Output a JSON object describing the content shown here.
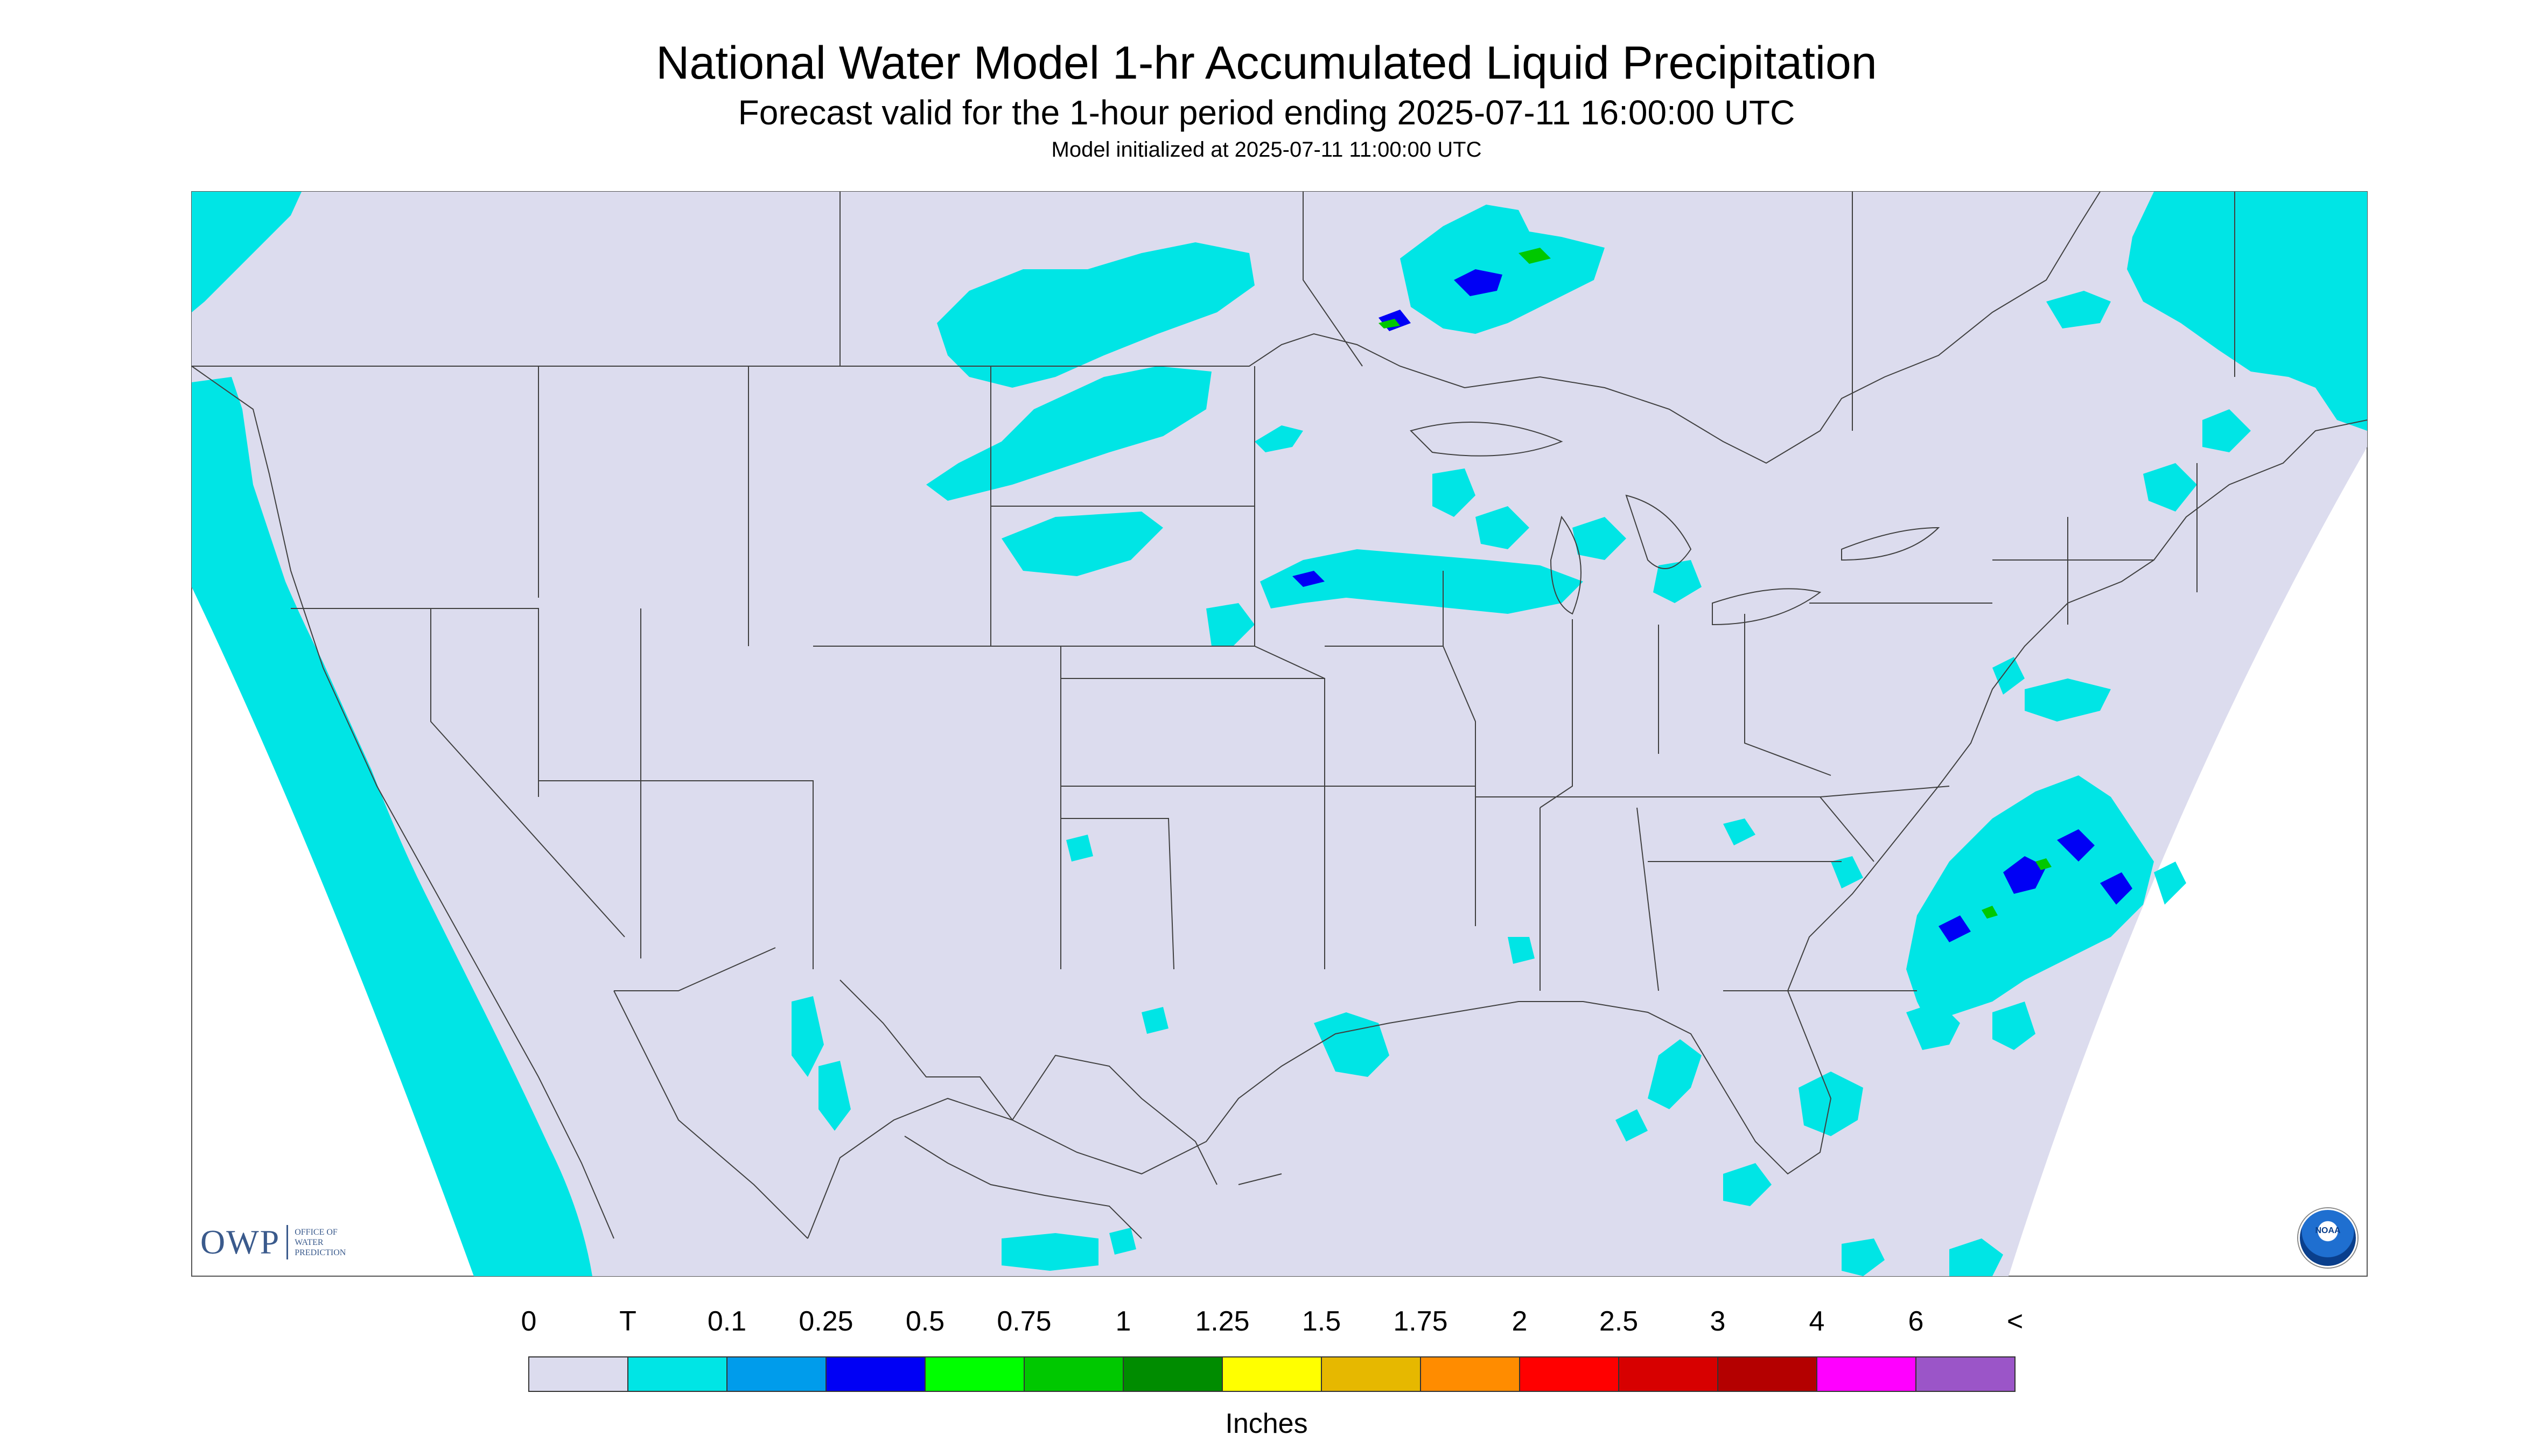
{
  "title": "National Water Model 1-hr Accumulated Liquid Precipitation",
  "subtitle": "Forecast valid for the 1-hour period ending 2025-07-11 16:00:00 UTC",
  "init_line": "Model initialized at 2025-07-11 11:00:00 UTC",
  "legend": {
    "labels": [
      "0",
      "T",
      "0.1",
      "0.25",
      "0.5",
      "0.75",
      "1",
      "1.25",
      "1.5",
      "1.75",
      "2",
      "2.5",
      "3",
      "4",
      "6",
      "<"
    ],
    "colors": [
      "#dcdcee",
      "#00e5e5",
      "#009ceb",
      "#0000f5",
      "#00ff00",
      "#00c800",
      "#008c00",
      "#ffff00",
      "#e6b800",
      "#ff8c00",
      "#ff0000",
      "#d70000",
      "#b40000",
      "#ff00ff",
      "#9b55c8"
    ],
    "units": "Inches"
  },
  "colors": {
    "domain_fill": "#dcdcee",
    "trace": "#00e5e5",
    "light": "#009ceb",
    "heavy": "#0000f5",
    "green": "#00c800",
    "border": "#404040"
  },
  "logos": {
    "owp_abbrev": "OWP",
    "owp_text": [
      "OFFICE OF",
      "WATER",
      "PREDICTION"
    ],
    "noaa_text": "NOAA"
  }
}
